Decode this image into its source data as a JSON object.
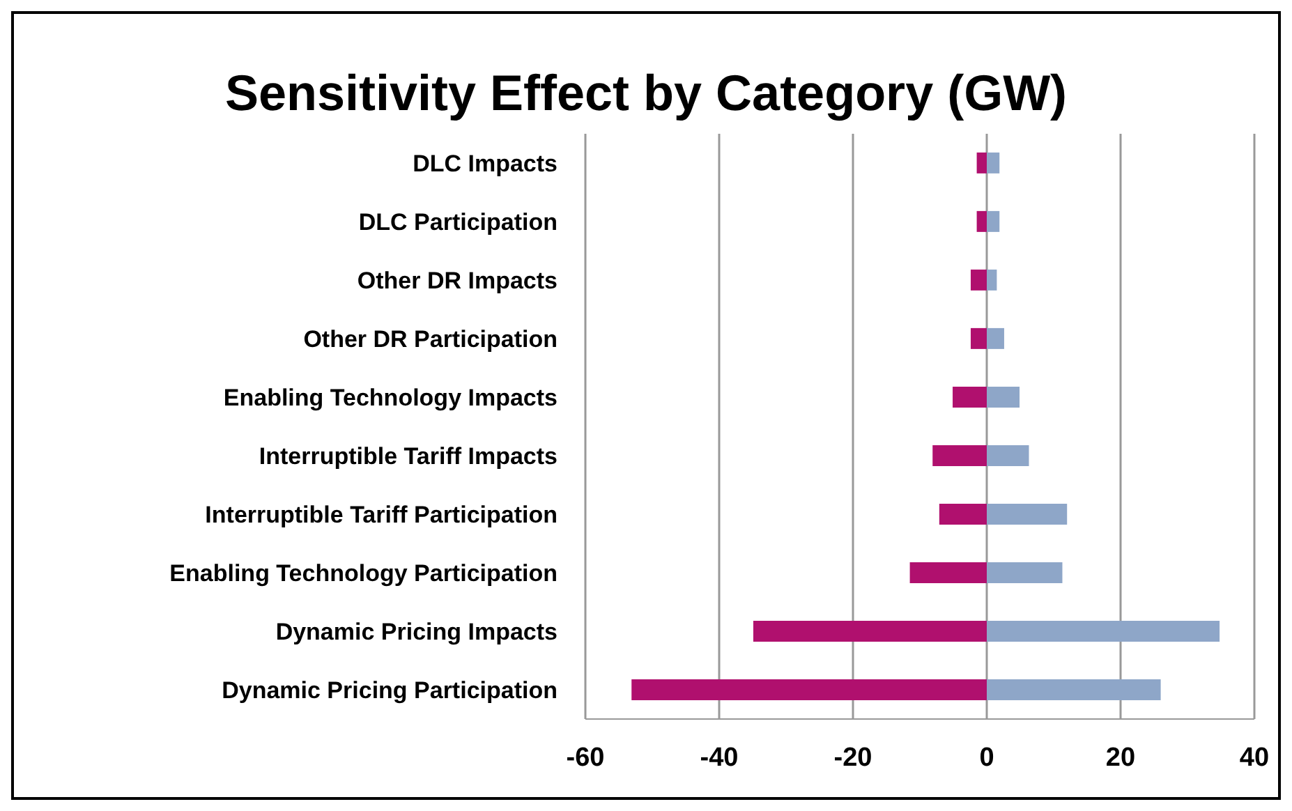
{
  "chart_data": {
    "type": "bar",
    "orientation": "horizontal",
    "stacked": true,
    "title": "Sensitivity Effect by Category (GW)",
    "categories": [
      "DLC Impacts",
      "DLC Participation",
      "Other DR Impacts",
      "Other DR Participation",
      "Enabling Technology Impacts",
      "Interruptible Tariff Impacts",
      "Interruptible Tariff Participation",
      "Enabling Technology Participation",
      "Dynamic Pricing Impacts",
      "Dynamic Pricing Participation"
    ],
    "series": [
      {
        "color": "#b0106e",
        "values": [
          -1.5,
          -1.5,
          -2.4,
          -2.4,
          -5.1,
          -8.1,
          -7.1,
          -11.5,
          -34.9,
          -53.1
        ]
      },
      {
        "color": "#8ea6c8",
        "values": [
          1.9,
          1.9,
          1.5,
          2.6,
          4.9,
          6.3,
          12.0,
          11.3,
          34.8,
          26.0
        ]
      }
    ],
    "xlim": [
      -60,
      40
    ],
    "xticks": [
      -60,
      -40,
      -20,
      0,
      20,
      40
    ],
    "grid": "x",
    "legend": false
  }
}
